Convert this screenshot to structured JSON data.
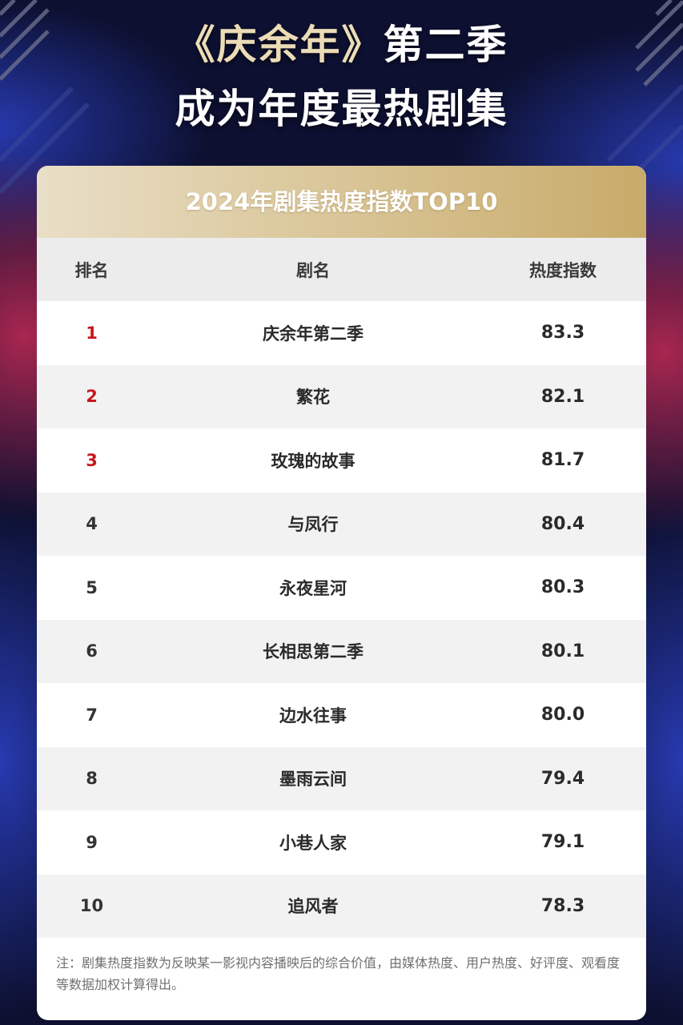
{
  "headline": {
    "part1": "《庆余年》",
    "part2": "第二季",
    "line2": "成为年度最热剧集"
  },
  "table": {
    "title": "2024年剧集热度指数TOP10",
    "columns": {
      "rank": "排名",
      "name": "剧名",
      "score": "热度指数"
    },
    "rows": [
      {
        "rank": "1",
        "name": "庆余年第二季",
        "score": "83.3"
      },
      {
        "rank": "2",
        "name": "繁花",
        "score": "82.1"
      },
      {
        "rank": "3",
        "name": "玫瑰的故事",
        "score": "81.7"
      },
      {
        "rank": "4",
        "name": "与凤行",
        "score": "80.4"
      },
      {
        "rank": "5",
        "name": "永夜星河",
        "score": "80.3"
      },
      {
        "rank": "6",
        "name": "长相思第二季",
        "score": "80.1"
      },
      {
        "rank": "7",
        "name": "边水往事",
        "score": "80.0"
      },
      {
        "rank": "8",
        "name": "墨雨云间",
        "score": "79.4"
      },
      {
        "rank": "9",
        "name": "小巷人家",
        "score": "79.1"
      },
      {
        "rank": "10",
        "name": "追风者",
        "score": "78.3"
      }
    ],
    "note": "注：剧集热度指数为反映某一影视内容播映后的综合价值，由媒体热度、用户热度、好评度、观看度等数据加权计算得出。"
  },
  "colors": {
    "background": "#0d1030",
    "top_rank": "#c8161d",
    "header_gold": "#c8ab6a"
  }
}
